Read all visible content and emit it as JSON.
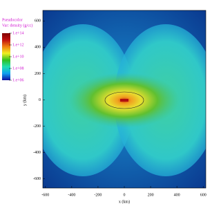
{
  "chart_data": {
    "type": "pseudocolor",
    "title": "Pseudocolor",
    "subtitle": "Var: density (g/cc)",
    "xlabel": "x (km)",
    "ylabel": "y (km)",
    "xlim": [
      -620,
      620
    ],
    "ylim": [
      -670,
      680
    ],
    "xticks": [
      -600,
      -400,
      -200,
      0,
      200,
      400,
      600
    ],
    "yticks": [
      -600,
      -400,
      -200,
      0,
      200,
      400,
      600
    ],
    "colorbar": {
      "log_scale": true,
      "lim": [
        1000000.0,
        100000000000000.0
      ],
      "ticks": [
        {
          "value": 100000000000000.0,
          "label": "1.e+14"
        },
        {
          "value": 1000000000000.0,
          "label": "1.e+12"
        },
        {
          "value": 10000000000.0,
          "label": "1.e+10"
        },
        {
          "value": 100000000.0,
          "label": "1.e+08"
        },
        {
          "value": 1000000.0,
          "label": "1.e+06"
        }
      ],
      "colors": [
        "#1010a0",
        "#10a0f0",
        "#20e0b0",
        "#30c020",
        "#f0f020",
        "#f08010",
        "#c01010",
        "#800000"
      ]
    }
  }
}
